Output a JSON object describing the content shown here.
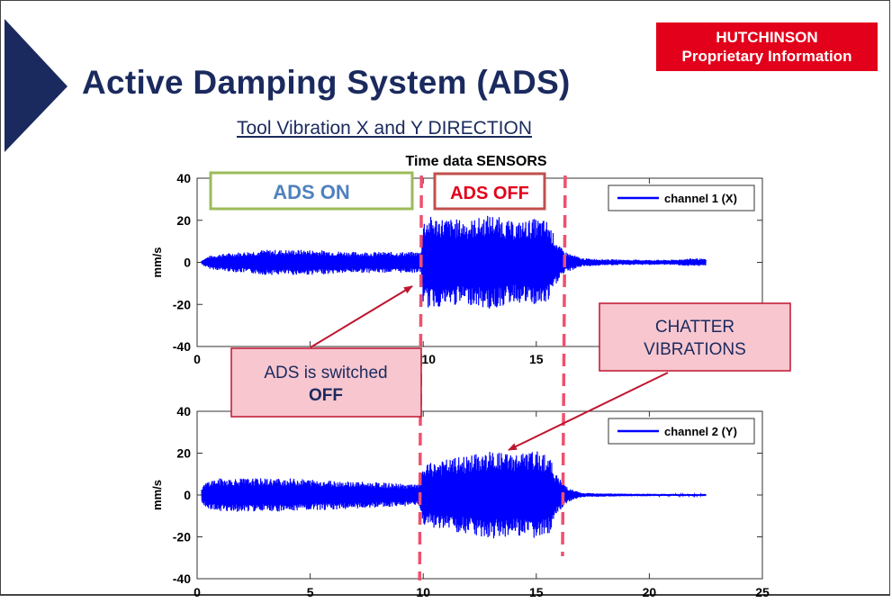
{
  "slide": {
    "title": "Active Damping System (ADS)",
    "subtitle": "Tool Vibration X and Y DIRECTION",
    "badge": {
      "line1": "HUTCHINSON",
      "line2": "Proprietary Information",
      "color": "#e2001a"
    },
    "title_color": "#1b2a5e"
  },
  "chart_data": [
    {
      "type": "line",
      "title": "Time data SENSORS",
      "ylabel": "mm/s",
      "xlim": [
        0,
        25
      ],
      "ylim": [
        -40,
        40
      ],
      "yticks": [
        40,
        20,
        0,
        -20,
        -40
      ],
      "xticks_visible": [
        "0",
        "10",
        "15"
      ],
      "legend": {
        "label": "channel 1 (X)",
        "placement": "top-right"
      },
      "series": [
        {
          "name": "channel 1 (X)",
          "color": "#0000ff"
        }
      ],
      "envelope": {
        "t": [
          0.2,
          0.5,
          1,
          2,
          3,
          5,
          7,
          9,
          9.9,
          10,
          10.2,
          12,
          13,
          14,
          15,
          15.5,
          16,
          16.3,
          17,
          18,
          19,
          20,
          21,
          22,
          22.5
        ],
        "amp": [
          1,
          3,
          4,
          5,
          6,
          6,
          5,
          5,
          5,
          20,
          22,
          20,
          23,
          19,
          21,
          20,
          8,
          5,
          2,
          1.5,
          1.3,
          1.2,
          1.2,
          2,
          1.5
        ]
      },
      "markers": {
        "switch_off_time": 10,
        "stop_time": 16.2
      }
    },
    {
      "type": "line",
      "ylabel": "mm/s",
      "xlim": [
        0,
        25
      ],
      "ylim": [
        -40,
        40
      ],
      "yticks": [
        40,
        20,
        0,
        -20,
        -40
      ],
      "xticks_visible": [
        "0",
        "5",
        "10",
        "15",
        "20",
        "25"
      ],
      "legend": {
        "label": "channel 2 (Y)",
        "placement": "top-right"
      },
      "series": [
        {
          "name": "channel 2 (Y)",
          "color": "#0000ff"
        }
      ],
      "envelope": {
        "t": [
          0.2,
          0.5,
          1,
          2,
          4,
          6,
          8,
          9.8,
          10,
          10.5,
          12,
          13,
          14,
          15,
          15.5,
          16,
          16.5,
          17,
          19,
          21,
          22.5
        ],
        "amp": [
          4,
          7,
          8,
          8,
          8,
          7,
          6,
          5,
          14,
          16,
          19,
          21,
          20,
          21,
          20,
          8,
          3,
          1,
          0.6,
          0.5,
          0.5
        ]
      },
      "markers": {
        "switch_off_time": 10,
        "stop_time": 16.2
      }
    }
  ],
  "annotations": {
    "ads_on": "ADS ON",
    "ads_off": "ADS OFF",
    "switched_line1": "ADS is switched",
    "switched_line2": "OFF",
    "chatter_line1": "CHATTER",
    "chatter_line2": "VIBRATIONS"
  },
  "colors": {
    "signal": "#0000ff",
    "marker": "#f0506e",
    "ads_on_border": "#9bbb59",
    "ads_on_text": "#4f81bd",
    "ads_off_border": "#c0504d",
    "ads_off_text": "#e2001a",
    "callout_fill": "#f7c6cf",
    "callout_border": "#c0152f",
    "arrow": "#c0152f",
    "callout_text": "#1b2a5e"
  }
}
